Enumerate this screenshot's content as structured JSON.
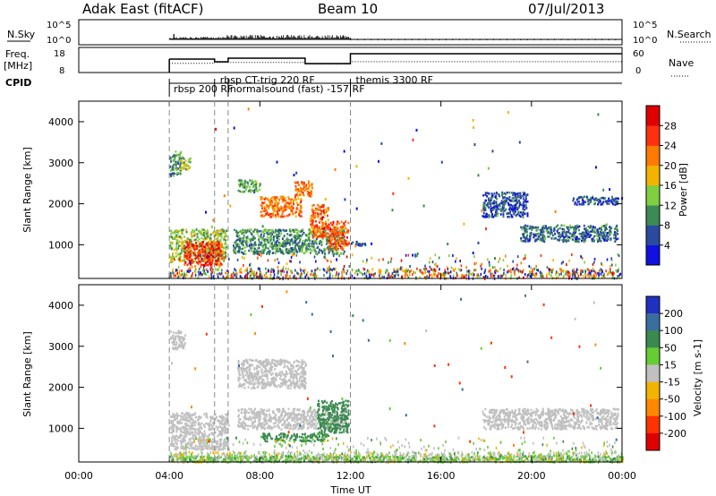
{
  "header": {
    "title": "Adak East (fitACF)",
    "beam": "Beam 10",
    "date": "07/Jul/2013"
  },
  "top_panels": {
    "nsky_label": "N.Sky",
    "nsearch_label": "N.Search",
    "left_ticks": [
      "10^5",
      "10^0"
    ],
    "right_ticks": [
      "10^5",
      "10^0"
    ],
    "freq_label": "Freq.",
    "freq_unit": "[MHz]",
    "freq_ticks": [
      "18",
      "8"
    ],
    "nave_label": "Nave",
    "nave_ticks": [
      "60",
      "0"
    ],
    "cpid_label": "CPID"
  },
  "cpid_segments": [
    {
      "label": "rbsp 200 RF",
      "start_h": 4.0
    },
    {
      "label": "rbsp CT-trig 220 RF",
      "start_h": 6.0
    },
    {
      "label": "normalsound (fast) -157 RF",
      "start_h": 6.6
    },
    {
      "label": "themis 3300 RF",
      "start_h": 12.0
    }
  ],
  "x_axis": {
    "label": "Time UT",
    "ticks": [
      "00:00",
      "04:00",
      "08:00",
      "12:00",
      "16:00",
      "20:00",
      "00:00"
    ],
    "range_h": [
      0,
      24
    ]
  },
  "y_axis": {
    "label": "Slant Range [km]",
    "ticks": [
      "1000",
      "2000",
      "3000",
      "4000"
    ],
    "range_km": [
      180,
      4500
    ]
  },
  "power_colorbar": {
    "title": "Power [dB]",
    "ticks": [
      "4",
      "8",
      "12",
      "16",
      "20",
      "24",
      "28"
    ],
    "colors": [
      "#1010e0",
      "#2a4aa0",
      "#3c8a55",
      "#7fcf40",
      "#f2b400",
      "#ff7a00",
      "#ff3010",
      "#e00000"
    ]
  },
  "velocity_colorbar": {
    "title": "Velocity [m s-1]",
    "ticks": [
      "200",
      "100",
      "50",
      "15",
      "-15",
      "-50",
      "-100",
      "-200"
    ],
    "colors": [
      "#2030c0",
      "#3a6ea0",
      "#3a8a50",
      "#66cc33",
      "#c0c0c0",
      "#f2b400",
      "#ff8800",
      "#ff3300",
      "#e00000"
    ]
  },
  "chart_data": [
    {
      "type": "heatmap",
      "title": "Power [dB]",
      "xlabel": "Time UT",
      "ylabel": "Slant Range [km]",
      "x_range_h": [
        0,
        24
      ],
      "y_range_km": [
        180,
        4500
      ],
      "regions": [
        {
          "t": [
            4.0,
            4.5
          ],
          "r": [
            2700,
            3300
          ],
          "value": 10
        },
        {
          "t": [
            4.4,
            4.9
          ],
          "r": [
            2850,
            3150
          ],
          "value": 14
        },
        {
          "t": [
            4.0,
            6.5
          ],
          "r": [
            600,
            1400
          ],
          "value": 14
        },
        {
          "t": [
            4.6,
            6.3
          ],
          "r": [
            500,
            1100
          ],
          "value": 26
        },
        {
          "t": [
            6.8,
            11.7
          ],
          "r": [
            800,
            1400
          ],
          "value": 10
        },
        {
          "t": [
            8.0,
            9.8
          ],
          "r": [
            1700,
            2200
          ],
          "value": 22
        },
        {
          "t": [
            9.5,
            10.3
          ],
          "r": [
            2200,
            2600
          ],
          "value": 22
        },
        {
          "t": [
            10.2,
            11.0
          ],
          "r": [
            1200,
            2000
          ],
          "value": 24
        },
        {
          "t": [
            11.0,
            11.9
          ],
          "r": [
            900,
            1600
          ],
          "value": 24
        },
        {
          "t": [
            7.0,
            8.0
          ],
          "r": [
            2300,
            2600
          ],
          "value": 12
        },
        {
          "t": [
            12.0,
            12.8
          ],
          "r": [
            1000,
            1100
          ],
          "value": 6
        },
        {
          "t": [
            17.8,
            19.8
          ],
          "r": [
            1700,
            2300
          ],
          "value": 6
        },
        {
          "t": [
            19.5,
            23.8
          ],
          "r": [
            1100,
            1500
          ],
          "value": 8
        },
        {
          "t": [
            21.8,
            23.8
          ],
          "r": [
            2000,
            2200
          ],
          "value": 6
        }
      ]
    },
    {
      "type": "heatmap",
      "title": "Velocity [m s-1]",
      "xlabel": "Time UT",
      "ylabel": "Slant Range [km]",
      "x_range_h": [
        0,
        24
      ],
      "y_range_km": [
        180,
        4500
      ],
      "regions": [
        {
          "t": [
            4.0,
            4.7
          ],
          "r": [
            2950,
            3400
          ],
          "value": 0
        },
        {
          "t": [
            4.0,
            6.6
          ],
          "r": [
            500,
            1400
          ],
          "value": 0
        },
        {
          "t": [
            7.0,
            10.0
          ],
          "r": [
            2000,
            2700
          ],
          "value": 0
        },
        {
          "t": [
            7.0,
            11.8
          ],
          "r": [
            1000,
            1500
          ],
          "value": 0
        },
        {
          "t": [
            8.0,
            11.0
          ],
          "r": [
            700,
            900
          ],
          "value": 40
        },
        {
          "t": [
            10.5,
            11.9
          ],
          "r": [
            900,
            1700
          ],
          "value": 60
        },
        {
          "t": [
            4.0,
            24.0
          ],
          "r": [
            200,
            350
          ],
          "value": 30
        },
        {
          "t": [
            17.8,
            23.8
          ],
          "r": [
            1000,
            1500
          ],
          "value": 0
        }
      ]
    }
  ]
}
